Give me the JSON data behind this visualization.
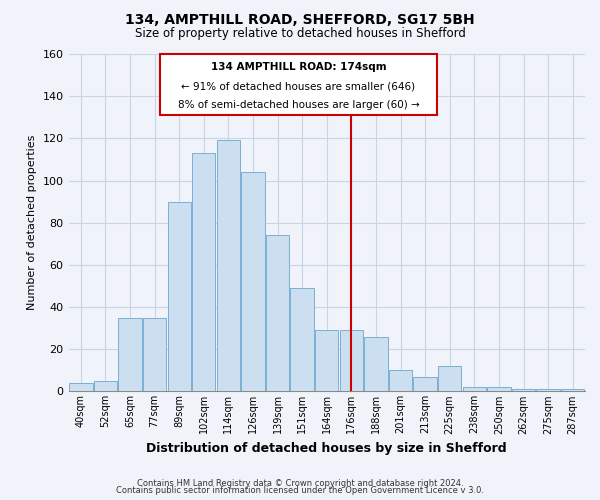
{
  "title": "134, AMPTHILL ROAD, SHEFFORD, SG17 5BH",
  "subtitle": "Size of property relative to detached houses in Shefford",
  "xlabel": "Distribution of detached houses by size in Shefford",
  "ylabel": "Number of detached properties",
  "bar_labels": [
    "40sqm",
    "52sqm",
    "65sqm",
    "77sqm",
    "89sqm",
    "102sqm",
    "114sqm",
    "126sqm",
    "139sqm",
    "151sqm",
    "164sqm",
    "176sqm",
    "188sqm",
    "201sqm",
    "213sqm",
    "225sqm",
    "238sqm",
    "250sqm",
    "262sqm",
    "275sqm",
    "287sqm"
  ],
  "bar_values": [
    4,
    5,
    35,
    35,
    90,
    113,
    119,
    104,
    74,
    49,
    29,
    29,
    26,
    10,
    7,
    12,
    2,
    2,
    1,
    1,
    1
  ],
  "bar_color": "#ccdff0",
  "bar_edge_color": "#7bafd4",
  "vline_x_idx": 11,
  "vline_color": "#cc0000",
  "ylim": [
    0,
    160
  ],
  "yticks": [
    0,
    20,
    40,
    60,
    80,
    100,
    120,
    140,
    160
  ],
  "annotation_title": "134 AMPTHILL ROAD: 174sqm",
  "annotation_line1": "← 91% of detached houses are smaller (646)",
  "annotation_line2": "8% of semi-detached houses are larger (60) →",
  "annotation_box_color": "#ffffff",
  "annotation_box_edge": "#cc0000",
  "footer1": "Contains HM Land Registry data © Crown copyright and database right 2024.",
  "footer2": "Contains public sector information licensed under the Open Government Licence v 3.0.",
  "background_color": "#f0f4fa",
  "plot_bg_color": "#f0f4fa",
  "grid_color": "#c8d4e8",
  "title_fontsize": 10,
  "subtitle_fontsize": 8.5
}
